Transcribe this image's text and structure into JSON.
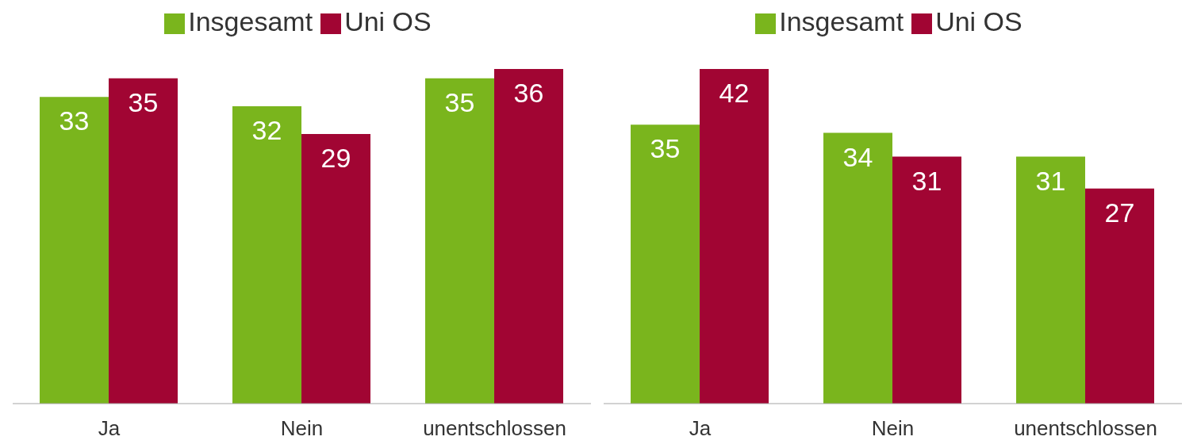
{
  "chart_data": [
    {
      "type": "bar",
      "categories": [
        "Ja",
        "Nein",
        "unentschlossen"
      ],
      "data_labels": true,
      "legend": "top",
      "series": [
        {
          "name": "Insgesamt",
          "color": "#7ab51d",
          "values": [
            33,
            32,
            35
          ]
        },
        {
          "name": "Uni OS",
          "color": "#a10533",
          "values": [
            35,
            29,
            36
          ]
        }
      ]
    },
    {
      "type": "bar",
      "categories": [
        "Ja",
        "Nein",
        "unentschlossen"
      ],
      "data_labels": true,
      "legend": "top",
      "series": [
        {
          "name": "Insgesamt",
          "color": "#7ab51d",
          "values": [
            35,
            34,
            31
          ]
        },
        {
          "name": "Uni OS",
          "color": "#a10533",
          "values": [
            42,
            31,
            27
          ]
        }
      ]
    }
  ]
}
